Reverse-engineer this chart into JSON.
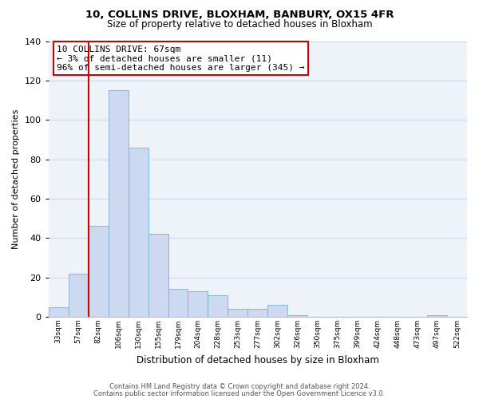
{
  "title": "10, COLLINS DRIVE, BLOXHAM, BANBURY, OX15 4FR",
  "subtitle": "Size of property relative to detached houses in Bloxham",
  "xlabel": "Distribution of detached houses by size in Bloxham",
  "ylabel": "Number of detached properties",
  "bar_color": "#ccd9f0",
  "bar_edge_color": "#7ab0d4",
  "background_color": "#ffffff",
  "plot_bg_color": "#eef2f9",
  "grid_color": "#d0d8ea",
  "categories": [
    "33sqm",
    "57sqm",
    "82sqm",
    "106sqm",
    "130sqm",
    "155sqm",
    "179sqm",
    "204sqm",
    "228sqm",
    "253sqm",
    "277sqm",
    "302sqm",
    "326sqm",
    "350sqm",
    "375sqm",
    "399sqm",
    "424sqm",
    "448sqm",
    "473sqm",
    "497sqm",
    "522sqm"
  ],
  "bar_heights": [
    5,
    22,
    46,
    115,
    86,
    42,
    14,
    13,
    11,
    4,
    4,
    6,
    1,
    0,
    0,
    0,
    0,
    0,
    0,
    1,
    0
  ],
  "ylim": [
    0,
    140
  ],
  "yticks": [
    0,
    20,
    40,
    60,
    80,
    100,
    120,
    140
  ],
  "red_line_x": 1.5,
  "annotation_title": "10 COLLINS DRIVE: 67sqm",
  "annotation_line1": "← 3% of detached houses are smaller (11)",
  "annotation_line2": "96% of semi-detached houses are larger (345) →",
  "footer_line1": "Contains HM Land Registry data © Crown copyright and database right 2024.",
  "footer_line2": "Contains public sector information licensed under the Open Government Licence v3.0."
}
